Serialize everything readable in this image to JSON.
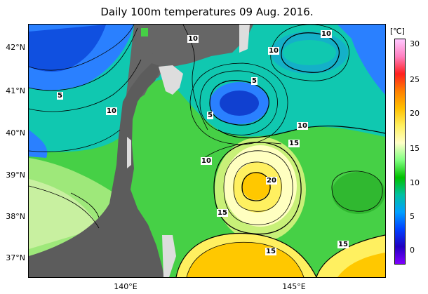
{
  "title": "Daily 100m temperatures 09 Aug. 2016.",
  "lat_labels": [
    "42°N",
    "41°N",
    "40°N",
    "39°N",
    "38°N",
    "37°N"
  ],
  "lon_labels": [
    "140°E",
    "145°E"
  ],
  "colorbar": {
    "unit": "[℃]",
    "ticks": [
      "30",
      "25",
      "20",
      "15",
      "10",
      "5",
      "0"
    ],
    "colors": [
      "#ffc8ff",
      "#ff80c0",
      "#ff2020",
      "#ff8000",
      "#ffc000",
      "#fff060",
      "#ffffc8",
      "#80ff80",
      "#00c000",
      "#00c0a0",
      "#00a0ff",
      "#0040ff",
      "#2000c0",
      "#8000ff"
    ]
  },
  "contour_labels": [
    {
      "text": "10",
      "name": "contour-label-10-a"
    },
    {
      "text": "10",
      "name": "contour-label-10-b"
    },
    {
      "text": "10",
      "name": "contour-label-10-c"
    },
    {
      "text": "5",
      "name": "contour-label-5-a"
    },
    {
      "text": "10",
      "name": "contour-label-10-d"
    },
    {
      "text": "5",
      "name": "contour-label-5-b"
    },
    {
      "text": "5",
      "name": "contour-label-5-c"
    },
    {
      "text": "10",
      "name": "contour-label-10-e"
    },
    {
      "text": "15",
      "name": "contour-label-15-a"
    },
    {
      "text": "10",
      "name": "contour-label-10-f"
    },
    {
      "text": "20",
      "name": "contour-label-20"
    },
    {
      "text": "15",
      "name": "contour-label-15-b"
    },
    {
      "text": "15",
      "name": "contour-label-15-c"
    },
    {
      "text": "15",
      "name": "contour-label-15-d"
    }
  ]
}
